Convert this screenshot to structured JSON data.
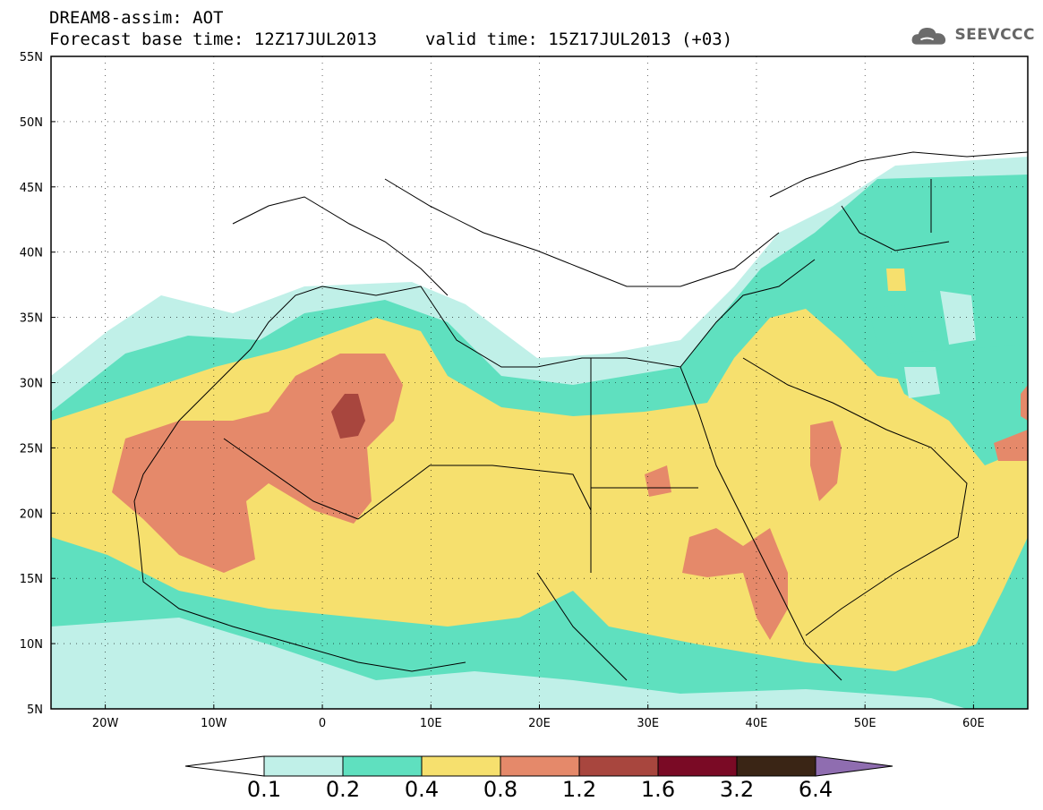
{
  "header": {
    "title_line1": "DREAM8-assim: AOT",
    "forecast_base": "Forecast base time: 12Z17JUL2013",
    "valid_time": "valid time: 15Z17JUL2013 (+03)"
  },
  "logo": {
    "text": "SEEVCCC",
    "icon": "cloud-icon"
  },
  "map": {
    "lon_labels": [
      "20W",
      "10W",
      "0",
      "10E",
      "20E",
      "30E",
      "40E",
      "50E",
      "60E"
    ],
    "lat_labels": [
      "55N",
      "50N",
      "45N",
      "40N",
      "35N",
      "30N",
      "25N",
      "20N",
      "15N",
      "10N",
      "5N"
    ],
    "lon_range": [
      -25,
      65
    ],
    "lat_range": [
      5,
      55
    ],
    "grid": "dotted"
  },
  "colorbar": {
    "levels": [
      "0.1",
      "0.2",
      "0.4",
      "0.8",
      "1.2",
      "1.6",
      "3.2",
      "6.4"
    ],
    "colors": {
      "below": "#ffffff",
      "c1": "#c0f0e8",
      "c2": "#5fe0bf",
      "c3": "#f6e06e",
      "c4": "#e5896a",
      "c5": "#a8463e",
      "c6": "#7a0a25",
      "c7": "#3a2515",
      "above": "#8f6db0"
    }
  }
}
